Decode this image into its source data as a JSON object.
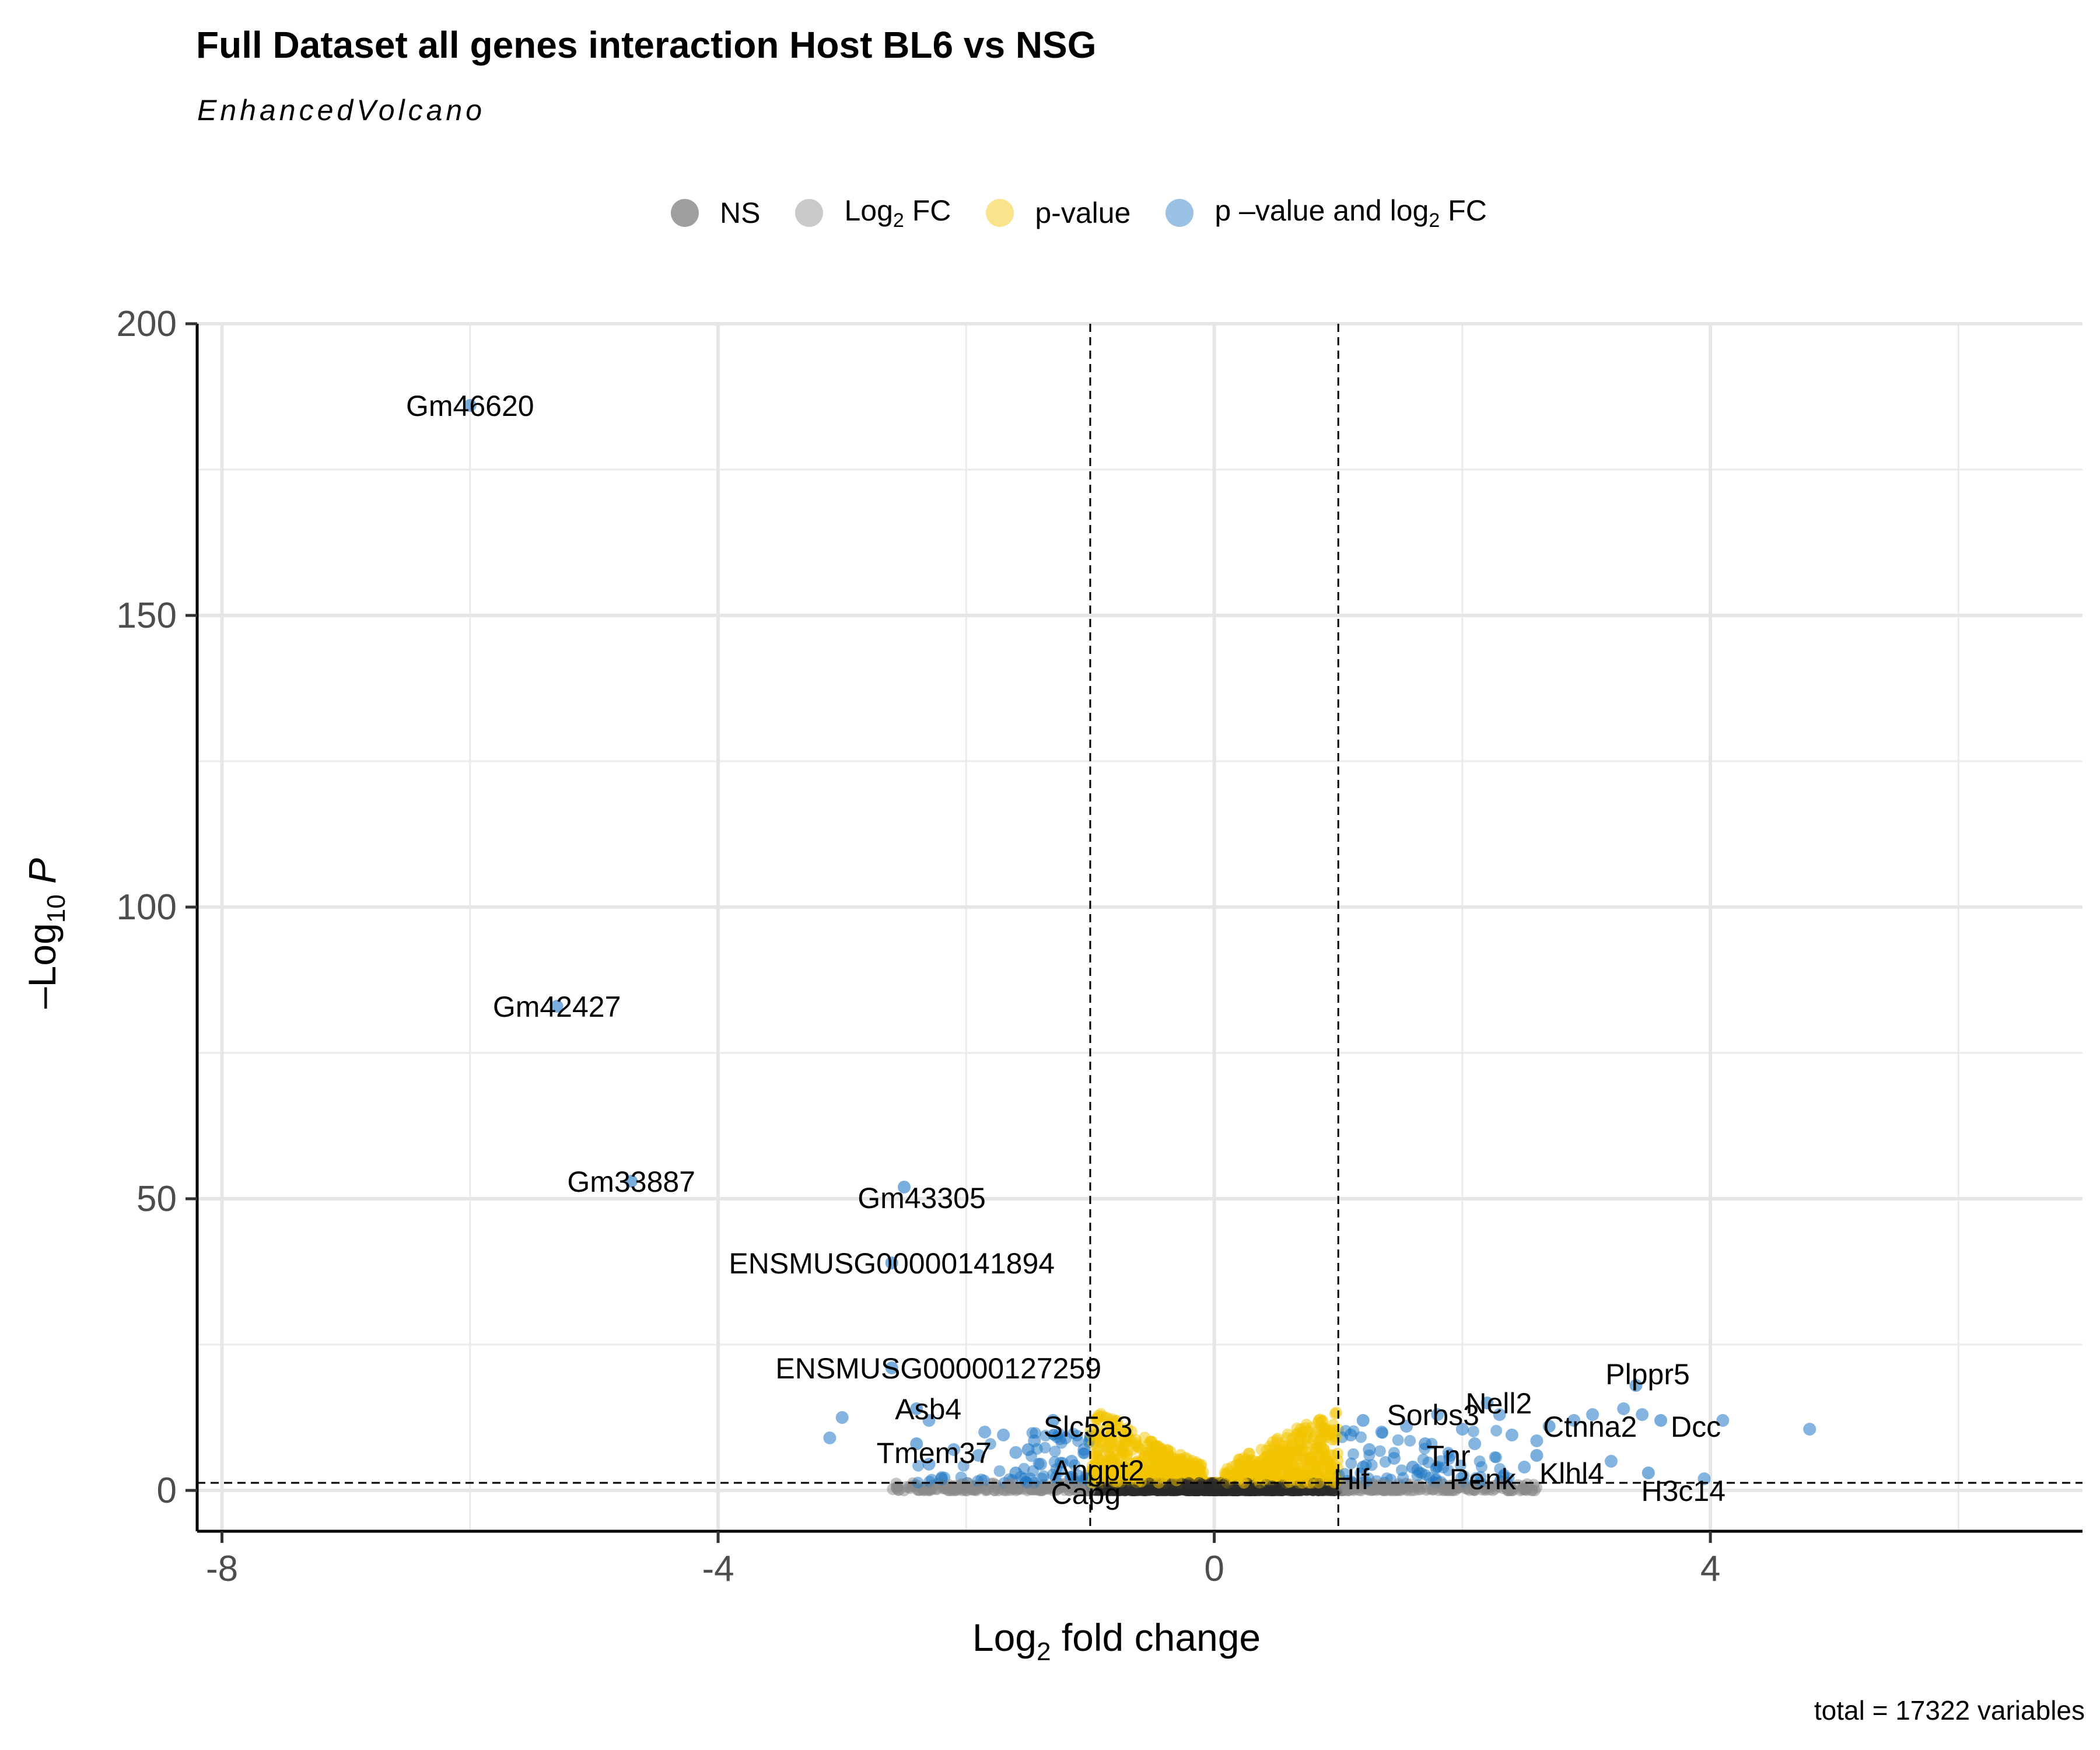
{
  "chart_data": {
    "type": "scatter",
    "title": "Full Dataset all genes interaction Host BL6 vs NSG",
    "subtitle": "EnhancedVolcano",
    "xlabel_main": "Log",
    "xlabel_sub": "2",
    "xlabel_rest": " fold change",
    "ylabel_minus": "–",
    "ylabel_main": "Log",
    "ylabel_sub": "10",
    "ylabel_var": "P",
    "xlim": [
      -8.2,
      7
    ],
    "ylim": [
      -7,
      200
    ],
    "x_ticks": [
      -8,
      -4,
      0,
      4
    ],
    "x_tick_labels": [
      "-8",
      "-4",
      "0",
      "4"
    ],
    "y_ticks": [
      0,
      50,
      100,
      150,
      200
    ],
    "y_tick_labels": [
      "0",
      "50",
      "100",
      "150",
      "200"
    ],
    "fc_cutoff": 1,
    "p_cutoff_neglog10": 1.3,
    "grid": true,
    "legend_position": "top",
    "colors": {
      "NS": "#2a2a2a",
      "Log2FC": "#8a8a8a",
      "pvalue": "#f2c300",
      "both": "#1f77c4"
    },
    "legend": [
      {
        "key": "NS",
        "text": "NS",
        "sub": "",
        "after": ""
      },
      {
        "key": "Log2FC",
        "text": "Log",
        "sub": "2",
        "after": " FC"
      },
      {
        "key": "pvalue",
        "text": "p-value",
        "sub": "",
        "after": ""
      },
      {
        "key": "both",
        "text": "p –value and log",
        "sub": "2",
        "after": " FC"
      }
    ],
    "total_count": 17322,
    "caption": "total = 17322 variables",
    "labeled_genes": [
      {
        "name": "Gm46620",
        "x": -6.0,
        "y": 186
      },
      {
        "name": "Gm42427",
        "x": -5.3,
        "y": 83
      },
      {
        "name": "Gm33887",
        "x": -4.7,
        "y": 53
      },
      {
        "name": "Gm43305",
        "x": -2.5,
        "y": 52
      },
      {
        "name": "ENSMUSG00000141894",
        "x": -2.6,
        "y": 39
      },
      {
        "name": "ENSMUSG00000127259",
        "x": -2.6,
        "y": 21
      },
      {
        "name": "Asb4",
        "x": -2.4,
        "y": 14
      },
      {
        "name": "Tmem37",
        "x": -2.4,
        "y": 8
      },
      {
        "name": "Slc5a3",
        "x": -1.3,
        "y": 12
      },
      {
        "name": "Angpt2",
        "x": -1.5,
        "y": 7
      },
      {
        "name": "Capg",
        "x": -1.6,
        "y": 3
      },
      {
        "name": "Sorbs3",
        "x": 1.2,
        "y": 12
      },
      {
        "name": "Tnr",
        "x": 1.7,
        "y": 8
      },
      {
        "name": "Hlf",
        "x": 1.2,
        "y": 4
      },
      {
        "name": "Penk",
        "x": 1.6,
        "y": 4
      },
      {
        "name": "Nell2",
        "x": 2.2,
        "y": 15
      },
      {
        "name": "Plppr5",
        "x": 3.4,
        "y": 18
      },
      {
        "name": "Dcc",
        "x": 3.6,
        "y": 12
      },
      {
        "name": "Ctnna2",
        "x": 2.7,
        "y": 11
      },
      {
        "name": "Klhl4",
        "x": 2.6,
        "y": 6
      },
      {
        "name": "H3c14",
        "x": 3.5,
        "y": 3
      }
    ],
    "other_significant_points": [
      {
        "x": -3.0,
        "y": 12.5
      },
      {
        "x": -3.1,
        "y": 9
      },
      {
        "x": -2.3,
        "y": 12
      },
      {
        "x": -2.3,
        "y": 4.5
      },
      {
        "x": -2.2,
        "y": 2
      },
      {
        "x": -2.1,
        "y": 7
      },
      {
        "x": -1.9,
        "y": 6
      },
      {
        "x": -1.85,
        "y": 10
      },
      {
        "x": -1.7,
        "y": 9.5
      },
      {
        "x": -1.6,
        "y": 6.5
      },
      {
        "x": -1.45,
        "y": 8.5
      },
      {
        "x": -1.4,
        "y": 4.5
      },
      {
        "x": -1.2,
        "y": 9
      },
      {
        "x": -1.15,
        "y": 5
      },
      {
        "x": -1.1,
        "y": 2.5
      },
      {
        "x": -1.05,
        "y": 7
      },
      {
        "x": 1.1,
        "y": 9.5
      },
      {
        "x": 1.25,
        "y": 7
      },
      {
        "x": 1.35,
        "y": 10
      },
      {
        "x": 1.45,
        "y": 5.5
      },
      {
        "x": 1.55,
        "y": 11
      },
      {
        "x": 1.8,
        "y": 13
      },
      {
        "x": 1.9,
        "y": 6
      },
      {
        "x": 2.0,
        "y": 10.5
      },
      {
        "x": 2.1,
        "y": 8
      },
      {
        "x": 2.3,
        "y": 13
      },
      {
        "x": 2.4,
        "y": 9.5
      },
      {
        "x": 2.5,
        "y": 4
      },
      {
        "x": 2.6,
        "y": 8.5
      },
      {
        "x": 2.9,
        "y": 12
      },
      {
        "x": 3.05,
        "y": 13
      },
      {
        "x": 3.2,
        "y": 5
      },
      {
        "x": 3.3,
        "y": 14
      },
      {
        "x": 3.45,
        "y": 13
      },
      {
        "x": 3.95,
        "y": 2
      },
      {
        "x": 4.1,
        "y": 12
      },
      {
        "x": 4.8,
        "y": 10.5
      }
    ]
  }
}
